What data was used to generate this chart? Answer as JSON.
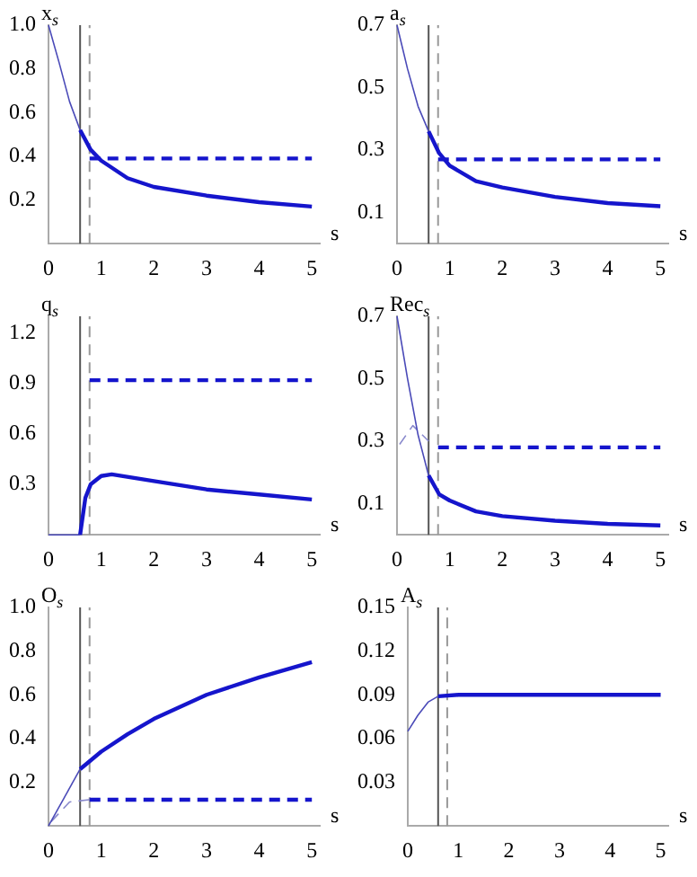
{
  "chart_data": [
    {
      "type": "line",
      "ylabel": "x$_{s}$",
      "xlabel": "s",
      "xlim": [
        0,
        5.15
      ],
      "xticks": [
        0,
        1,
        2,
        3,
        4,
        5
      ],
      "ylim": [
        0,
        1.0
      ],
      "yticks": [
        0.2,
        0.4,
        0.6,
        0.8,
        {
          "value": 1.0,
          "label": "1.0"
        }
      ],
      "grid": false,
      "legend": false,
      "series": [
        {
          "color": "#4a4ab8",
          "line_style": "solid",
          "x": [
            0,
            0.2,
            0.4,
            0.6
          ],
          "values": [
            1.0,
            0.83,
            0.65,
            0.52
          ]
        },
        {
          "color": "#1515cc",
          "line_style": "solid",
          "x": [
            0.6,
            0.8,
            1,
            1.5,
            2,
            3,
            4,
            5
          ],
          "values": [
            0.52,
            0.43,
            0.38,
            0.3,
            0.26,
            0.22,
            0.19,
            0.17
          ]
        },
        {
          "color": "#1515cc",
          "line_style": "dashed",
          "x": [
            0.78,
            5
          ],
          "values": [
            0.39,
            0.39
          ]
        }
      ],
      "ref_lines": [
        {
          "axis": "x",
          "value": 0.6,
          "color": "#555555",
          "line_style": "solid"
        },
        {
          "axis": "x",
          "value": 0.78,
          "color": "#999999",
          "line_style": "dashed"
        }
      ]
    },
    {
      "type": "line",
      "ylabel": "a$_{s}$",
      "xlabel": "s",
      "xlim": [
        0,
        5.15
      ],
      "xticks": [
        0,
        1,
        2,
        3,
        4,
        5
      ],
      "ylim": [
        0,
        0.7
      ],
      "yticks": [
        0.1,
        0.3,
        0.5,
        0.7
      ],
      "grid": false,
      "legend": false,
      "series": [
        {
          "color": "#4a4ab8",
          "line_style": "solid",
          "x": [
            0,
            0.2,
            0.4,
            0.6
          ],
          "values": [
            0.7,
            0.56,
            0.44,
            0.36
          ]
        },
        {
          "color": "#1515cc",
          "line_style": "solid",
          "x": [
            0.6,
            0.8,
            1,
            1.5,
            2,
            3,
            4,
            5
          ],
          "values": [
            0.36,
            0.29,
            0.25,
            0.2,
            0.18,
            0.15,
            0.13,
            0.12
          ]
        },
        {
          "color": "#1515cc",
          "line_style": "dashed",
          "x": [
            0.78,
            5
          ],
          "values": [
            0.27,
            0.27
          ]
        }
      ],
      "ref_lines": [
        {
          "axis": "x",
          "value": 0.6,
          "color": "#555555",
          "line_style": "solid"
        },
        {
          "axis": "x",
          "value": 0.78,
          "color": "#999999",
          "line_style": "dashed"
        }
      ]
    },
    {
      "type": "line",
      "ylabel": "q$_{s}$",
      "xlabel": "s",
      "xlim": [
        0,
        5.15
      ],
      "xticks": [
        0,
        1,
        2,
        3,
        4,
        5
      ],
      "ylim": [
        0,
        1.3
      ],
      "yticks": [
        0.3,
        0.6,
        0.9,
        1.2
      ],
      "grid": false,
      "legend": false,
      "series": [
        {
          "color": "#4a4ab8",
          "line_style": "solid",
          "x": [
            0,
            0.6
          ],
          "values": [
            0,
            0
          ]
        },
        {
          "color": "#1515cc",
          "line_style": "solid",
          "x": [
            0.6,
            0.7,
            0.8,
            1,
            1.2,
            2,
            3,
            4,
            5
          ],
          "values": [
            0,
            0.22,
            0.3,
            0.35,
            0.36,
            0.32,
            0.27,
            0.24,
            0.21
          ]
        },
        {
          "color": "#1515cc",
          "line_style": "dashed",
          "x": [
            0.78,
            5
          ],
          "values": [
            0.92,
            0.92
          ]
        }
      ],
      "ref_lines": [
        {
          "axis": "x",
          "value": 0.6,
          "color": "#555555",
          "line_style": "solid"
        },
        {
          "axis": "x",
          "value": 0.78,
          "color": "#999999",
          "line_style": "dashed"
        }
      ]
    },
    {
      "type": "line",
      "ylabel": "Rec$_{s}$",
      "xlabel": "s",
      "xlim": [
        0,
        5.15
      ],
      "xticks": [
        0,
        1,
        2,
        3,
        4,
        5
      ],
      "ylim": [
        0,
        0.7
      ],
      "yticks": [
        0.1,
        0.3,
        0.5,
        0.7
      ],
      "grid": false,
      "legend": false,
      "series": [
        {
          "color": "#4a4ab8",
          "line_style": "solid",
          "x": [
            0,
            0.2,
            0.4,
            0.6
          ],
          "values": [
            0.7,
            0.5,
            0.32,
            0.19
          ]
        },
        {
          "color": "#1515cc",
          "line_style": "solid",
          "x": [
            0.6,
            0.8,
            1,
            1.5,
            2,
            3,
            4,
            5
          ],
          "values": [
            0.19,
            0.13,
            0.11,
            0.075,
            0.06,
            0.045,
            0.035,
            0.03
          ]
        },
        {
          "color": "#1515cc",
          "line_style": "dashed",
          "x": [
            0.78,
            5
          ],
          "values": [
            0.28,
            0.28
          ]
        },
        {
          "color": "#8888cc",
          "line_style": "dashed",
          "x": [
            0.05,
            0.3,
            0.6
          ],
          "values": [
            0.29,
            0.35,
            0.3
          ]
        }
      ],
      "ref_lines": [
        {
          "axis": "x",
          "value": 0.6,
          "color": "#555555",
          "line_style": "solid"
        },
        {
          "axis": "x",
          "value": 0.78,
          "color": "#999999",
          "line_style": "dashed"
        }
      ]
    },
    {
      "type": "line",
      "ylabel": "O$_{s}$",
      "xlabel": "s",
      "xlim": [
        0,
        5.15
      ],
      "xticks": [
        0,
        1,
        2,
        3,
        4,
        5
      ],
      "ylim": [
        0,
        1.0
      ],
      "yticks": [
        0.2,
        0.4,
        0.6,
        0.8,
        {
          "value": 1.0,
          "label": "1.0"
        }
      ],
      "grid": false,
      "legend": false,
      "series": [
        {
          "color": "#4a4ab8",
          "line_style": "solid",
          "x": [
            0,
            0.3,
            0.6
          ],
          "values": [
            0,
            0.13,
            0.26
          ]
        },
        {
          "color": "#1515cc",
          "line_style": "solid",
          "x": [
            0.6,
            1,
            1.5,
            2,
            3,
            4,
            5
          ],
          "values": [
            0.26,
            0.34,
            0.42,
            0.49,
            0.6,
            0.68,
            0.75
          ]
        },
        {
          "color": "#1515cc",
          "line_style": "dashed",
          "x": [
            0.78,
            5
          ],
          "values": [
            0.12,
            0.12
          ]
        },
        {
          "color": "#8888cc",
          "line_style": "dashed",
          "x": [
            0.05,
            0.4,
            0.78
          ],
          "values": [
            0.02,
            0.11,
            0.12
          ]
        }
      ],
      "ref_lines": [
        {
          "axis": "x",
          "value": 0.6,
          "color": "#555555",
          "line_style": "solid"
        },
        {
          "axis": "x",
          "value": 0.78,
          "color": "#999999",
          "line_style": "dashed"
        }
      ]
    },
    {
      "type": "line",
      "ylabel": "A$_{s}$",
      "xlabel": "s",
      "xlim": [
        0,
        5.15
      ],
      "xticks": [
        0,
        1,
        2,
        3,
        4,
        5
      ],
      "ylim": [
        0,
        0.15
      ],
      "yticks": [
        0.03,
        0.06,
        0.09,
        0.12,
        0.15
      ],
      "grid": false,
      "legend": false,
      "series": [
        {
          "color": "#4a4ab8",
          "line_style": "solid",
          "x": [
            0,
            0.2,
            0.4,
            0.6
          ],
          "values": [
            0.065,
            0.076,
            0.085,
            0.089
          ]
        },
        {
          "color": "#1515cc",
          "line_style": "solid",
          "x": [
            0.6,
            1,
            5
          ],
          "values": [
            0.089,
            0.09,
            0.09
          ]
        }
      ],
      "ref_lines": [
        {
          "axis": "x",
          "value": 0.6,
          "color": "#555555",
          "line_style": "solid"
        },
        {
          "axis": "x",
          "value": 0.78,
          "color": "#999999",
          "line_style": "dashed"
        }
      ]
    }
  ]
}
